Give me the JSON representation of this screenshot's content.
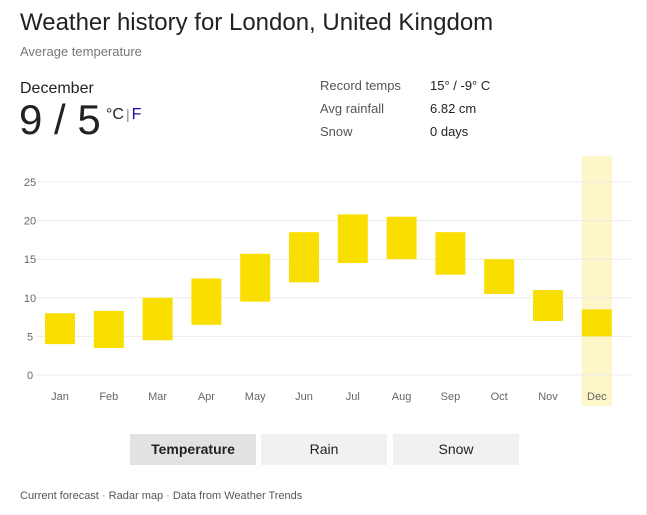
{
  "header": {
    "title": "Weather history for London, United Kingdom",
    "subtitle": "Average temperature"
  },
  "summary": {
    "month": "December",
    "high_low": "9 / 5",
    "unit_c": "°C",
    "unit_sep": "|",
    "unit_f": "F"
  },
  "stats": [
    {
      "label": "Record temps",
      "value": "15° / -9° C"
    },
    {
      "label": "Avg rainfall",
      "value": "6.82 cm"
    },
    {
      "label": "Snow",
      "value": "0 days"
    }
  ],
  "colors": {
    "bar": "#f9df00",
    "highlight": "#fdf6c8",
    "grid": "#ececec",
    "axis_text": "#666666"
  },
  "chart_data": {
    "type": "bar",
    "title": "",
    "xlabel": "",
    "ylabel": "",
    "categories": [
      "Jan",
      "Feb",
      "Mar",
      "Apr",
      "May",
      "Jun",
      "Jul",
      "Aug",
      "Sep",
      "Oct",
      "Nov",
      "Dec"
    ],
    "series": [
      {
        "low": 4,
        "high": 8
      },
      {
        "low": 3.5,
        "high": 8.3
      },
      {
        "low": 4.5,
        "high": 10
      },
      {
        "low": 6.5,
        "high": 12.5
      },
      {
        "low": 9.5,
        "high": 15.7
      },
      {
        "low": 12,
        "high": 18.5
      },
      {
        "low": 14.5,
        "high": 20.8
      },
      {
        "low": 15,
        "high": 20.5
      },
      {
        "low": 13,
        "high": 18.5
      },
      {
        "low": 10.5,
        "high": 15
      },
      {
        "low": 7,
        "high": 11
      },
      {
        "low": 5,
        "high": 8.5
      }
    ],
    "yticks": [
      0,
      5,
      10,
      15,
      20,
      25
    ],
    "ylim": [
      0,
      25
    ],
    "highlighted_category": "Dec",
    "grid": true
  },
  "tabs": [
    {
      "label": "Temperature",
      "selected": true
    },
    {
      "label": "Rain",
      "selected": false
    },
    {
      "label": "Snow",
      "selected": false
    }
  ],
  "footer": {
    "link_forecast": "Current forecast",
    "link_radar": "Radar map",
    "data_source": "Data from Weather Trends",
    "separator": "·"
  }
}
